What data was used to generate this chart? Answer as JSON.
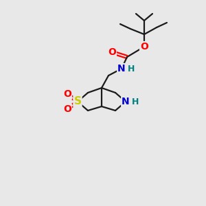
{
  "background_color": "#e8e8e8",
  "bond_color": "#1a1a1a",
  "atom_colors": {
    "O": "#ff0000",
    "N": "#0000cc",
    "S": "#cccc00",
    "H_on_N": "#008080",
    "C": "#1a1a1a"
  },
  "figsize": [
    3.0,
    3.0
  ],
  "dpi": 100
}
